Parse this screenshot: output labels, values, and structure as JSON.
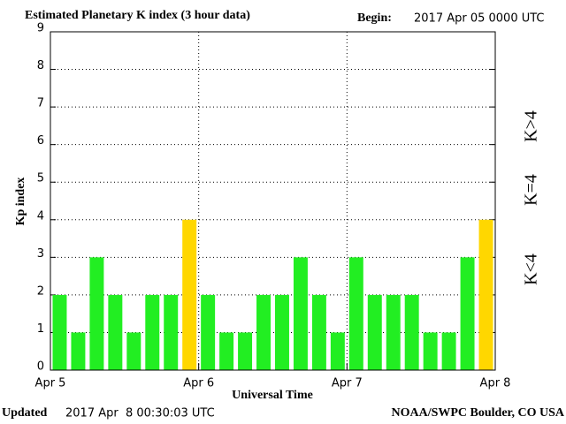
{
  "chart_data": {
    "type": "bar",
    "title": "Estimated Planetary K index (3 hour data)",
    "begin_label": "Begin:",
    "begin": "2017 Apr 05 0000 UTC",
    "y_label": "Kp index",
    "x_label": "Universal Time",
    "updated_label": "Updated",
    "updated": "2017 Apr  8 00:30:03 UTC",
    "credit": "NOAA/SWPC Boulder, CO USA",
    "x": [
      0,
      3,
      6,
      9,
      12,
      15,
      18,
      21,
      24,
      27,
      30,
      33,
      36,
      39,
      42,
      45,
      48,
      51,
      54,
      57,
      60,
      63,
      66,
      69
    ],
    "values": [
      2,
      1,
      3,
      2,
      1,
      2,
      2,
      4,
      2,
      1,
      1,
      2,
      2,
      3,
      2,
      1,
      3,
      2,
      2,
      2,
      1,
      1,
      3,
      4
    ],
    "xlim": [
      0,
      72
    ],
    "xticks": [
      {
        "value": 0,
        "label": "Apr 5"
      },
      {
        "value": 24,
        "label": "Apr 6"
      },
      {
        "value": 48,
        "label": "Apr 7"
      },
      {
        "value": 72,
        "label": "Apr 8"
      }
    ],
    "ylim": [
      0,
      9
    ],
    "yticks": [
      0,
      1,
      2,
      3,
      4,
      5,
      6,
      7,
      8,
      9
    ],
    "grid": true,
    "threshold": 4,
    "legend": [
      {
        "label": "K<4",
        "color": "#22ee22"
      },
      {
        "label": "K=4",
        "color": "#ffd700"
      },
      {
        "label": "K>4",
        "color": "#ee2200"
      }
    ]
  }
}
